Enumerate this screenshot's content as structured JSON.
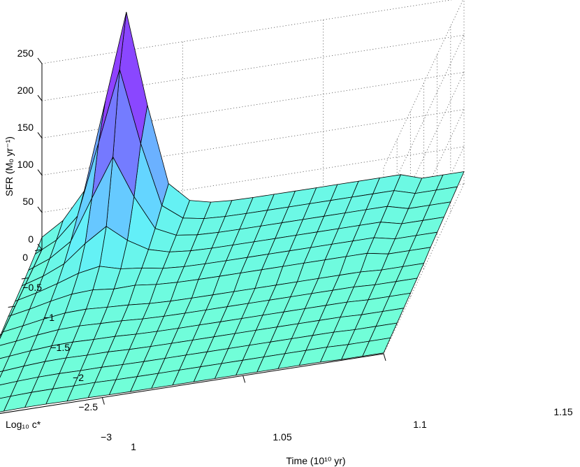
{
  "chart_data": {
    "type": "surface3d",
    "title": "",
    "xlabel": "Time (10¹⁰ yr)",
    "ylabel": "Log₁₀ c*",
    "zlabel": "SFR (Mₒ yr⁻¹)",
    "xlim": [
      1.0,
      1.15
    ],
    "ylim": [
      -3.0,
      0.0
    ],
    "zlim": [
      0,
      250
    ],
    "xticks": [
      "1",
      "1.05",
      "1.1",
      "1.15"
    ],
    "yticks": [
      "0",
      "−0.5",
      "−1",
      "−1.5",
      "−2",
      "−2.5",
      "−3"
    ],
    "zticks": [
      "0",
      "50",
      "100",
      "150",
      "200",
      "250"
    ],
    "grid": true,
    "colormap": [
      "#72ffd6",
      "#60ecff",
      "#6f98ff",
      "#7a5cff",
      "#a02bff"
    ],
    "note": "Surface of SFR over Time (x) and Log10 c* (y); sharp peak ≈ 232 near Time ≈ 1.03, Log10 c* = 0, decaying toward lower c* and later times.",
    "peak": {
      "time": 1.03,
      "log_c": 0.0,
      "sfr": 232
    }
  }
}
